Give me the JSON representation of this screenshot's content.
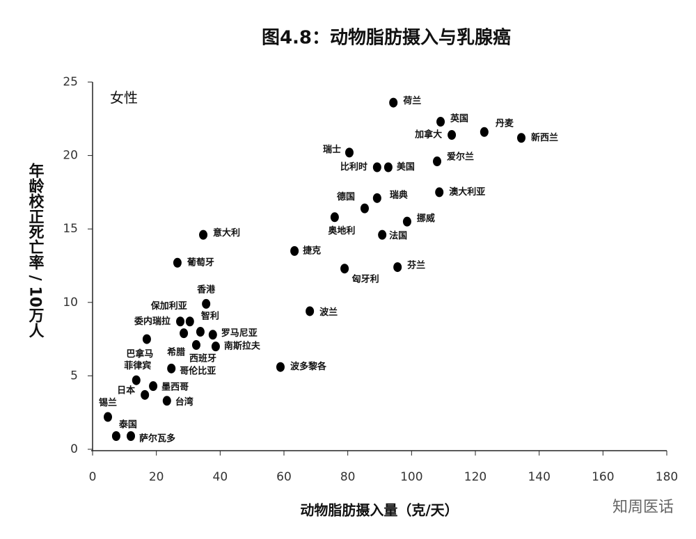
{
  "chart_data": {
    "type": "scatter",
    "title": "图4.8：动物脂肪摄入与乳腺癌",
    "annotation": "女性",
    "x_label": "动物脂肪摄入量（克/天）",
    "y_label": "年龄校正死亡率 / 10万人",
    "watermark": "知周医话",
    "color": "#000000",
    "labels": [
      "荷兰",
      "英国",
      "丹麦",
      "加拿大",
      "新西兰",
      "瑞士",
      "爱尔兰",
      "比利时",
      "美国",
      "德国",
      "瑞典",
      "奥地利",
      "挪威",
      "澳大利亚",
      "法国",
      "意大利",
      "捷克",
      "葡萄牙",
      "匈牙利",
      "芬兰",
      "香港",
      "保加利亚",
      "委内瑞拉",
      "智利",
      "罗马尼亚",
      "南斯拉夫",
      "西班牙",
      "希腊",
      "巴拿马",
      "哥伦比亚",
      "菲律宾",
      "波多黎各",
      "波兰",
      "墨西哥",
      "日本",
      "台湾",
      "锡兰",
      "泰国",
      "萨尔瓦多"
    ],
    "x": [
      94.3,
      109.1,
      122.8,
      112.6,
      134.4,
      80.5,
      108,
      89.2,
      92.7,
      85.3,
      89.2,
      75.9,
      98.6,
      108.7,
      90.8,
      34.7,
      63.3,
      26.6,
      79,
      95.6,
      35.6,
      30.5,
      27.5,
      33.8,
      37.7,
      38.6,
      32.5,
      28.6,
      17,
      24.7,
      13.7,
      58.9,
      68.1,
      19,
      16.4,
      23.3,
      4.8,
      7.4,
      12
    ],
    "values": [
      23.6,
      22.3,
      21.6,
      21.4,
      21.2,
      20.2,
      19.6,
      19.2,
      19.2,
      16.4,
      17.1,
      15.8,
      15.5,
      17.5,
      14.6,
      14.6,
      13.5,
      12.7,
      12.3,
      12.4,
      9.9,
      8.7,
      8.7,
      8,
      7.8,
      7,
      7.1,
      7.9,
      7.5,
      5.5,
      4.7,
      5.6,
      9.4,
      4.3,
      3.7,
      3.3,
      2.2,
      0.9,
      0.9
    ],
    "xlim": [
      0,
      180
    ],
    "xticks": [
      0,
      20,
      40,
      60,
      80,
      100,
      120,
      140,
      160,
      180
    ],
    "ylim": [
      0,
      25
    ],
    "yticks": [
      0,
      5,
      10,
      15,
      20,
      25
    ]
  }
}
